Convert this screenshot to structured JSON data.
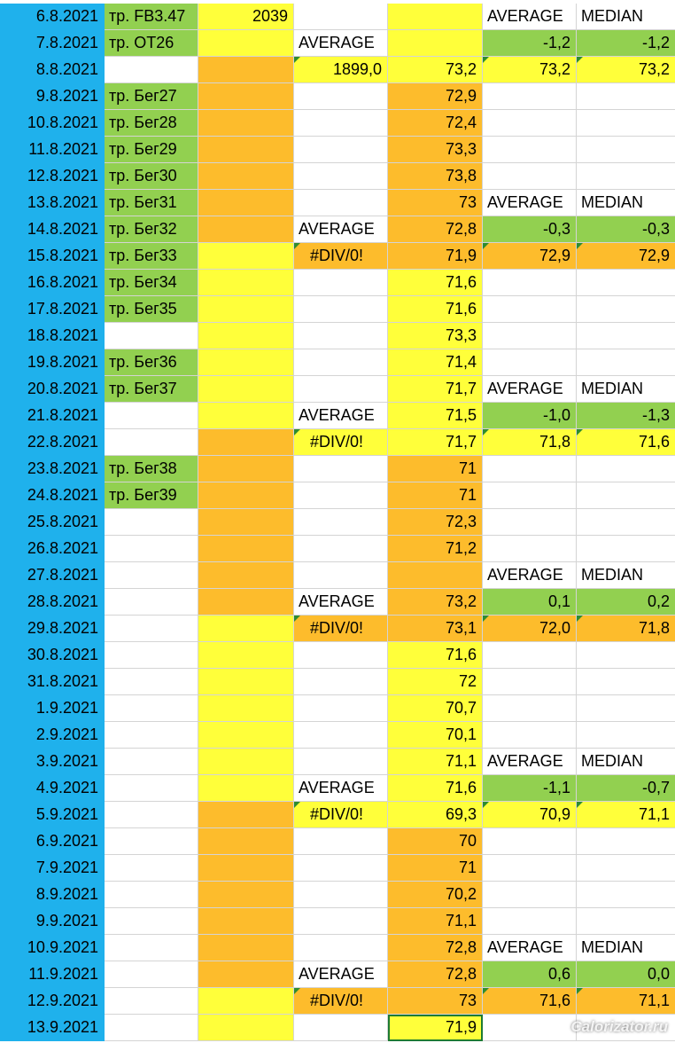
{
  "sheet": {
    "rows": [
      {
        "date": "6.8.2021",
        "training": "тр. FB3.47",
        "c2": "2039",
        "c3": "",
        "c4": "",
        "c5": "AVERAGE",
        "c6": "MEDIAN",
        "fill": [
          "blue",
          "green",
          "yellow",
          "white",
          "yellow",
          "white",
          "white"
        ],
        "tri": []
      },
      {
        "date": "7.8.2021",
        "training": "тр. OT26",
        "c2": "",
        "c3": "AVERAGE",
        "c4": "",
        "c5": "-1,2",
        "c6": "-1,2",
        "fill": [
          "blue",
          "green",
          "yellow",
          "white",
          "yellow",
          "green",
          "green"
        ],
        "tri": []
      },
      {
        "date": "8.8.2021",
        "training": "",
        "c2": "",
        "c3": "1899,0",
        "c4": "73,2",
        "c5": "73,2",
        "c6": "73,2",
        "fill": [
          "blue",
          "white",
          "orange",
          "yellow",
          "yellow",
          "yellow",
          "yellow"
        ],
        "tri": [
          3,
          5,
          6
        ]
      },
      {
        "date": "9.8.2021",
        "training": "тр. Бег27",
        "c2": "",
        "c3": "",
        "c4": "72,9",
        "c5": "",
        "c6": "",
        "fill": [
          "blue",
          "green",
          "orange",
          "white",
          "orange",
          "white",
          "white"
        ],
        "tri": []
      },
      {
        "date": "10.8.2021",
        "training": "тр. Бег28",
        "c2": "",
        "c3": "",
        "c4": "72,4",
        "c5": "",
        "c6": "",
        "fill": [
          "blue",
          "green",
          "orange",
          "white",
          "orange",
          "white",
          "white"
        ],
        "tri": []
      },
      {
        "date": "11.8.2021",
        "training": "тр. Бег29",
        "c2": "",
        "c3": "",
        "c4": "73,3",
        "c5": "",
        "c6": "",
        "fill": [
          "blue",
          "green",
          "orange",
          "white",
          "orange",
          "white",
          "white"
        ],
        "tri": []
      },
      {
        "date": "12.8.2021",
        "training": "тр. Бег30",
        "c2": "",
        "c3": "",
        "c4": "73,8",
        "c5": "",
        "c6": "",
        "fill": [
          "blue",
          "green",
          "orange",
          "white",
          "orange",
          "white",
          "white"
        ],
        "tri": []
      },
      {
        "date": "13.8.2021",
        "training": "тр. Бег31",
        "c2": "",
        "c3": "",
        "c4": "73",
        "c5": "AVERAGE",
        "c6": "MEDIAN",
        "fill": [
          "blue",
          "green",
          "orange",
          "white",
          "orange",
          "white",
          "white"
        ],
        "tri": []
      },
      {
        "date": "14.8.2021",
        "training": "тр. Бег32",
        "c2": "",
        "c3": "AVERAGE",
        "c4": "72,8",
        "c5": "-0,3",
        "c6": "-0,3",
        "fill": [
          "blue",
          "green",
          "orange",
          "white",
          "orange",
          "green",
          "green"
        ],
        "tri": []
      },
      {
        "date": "15.8.2021",
        "training": "тр. Бег33",
        "c2": "",
        "c3": "#DIV/0!",
        "c4": "71,9",
        "c5": "72,9",
        "c6": "72,9",
        "fill": [
          "blue",
          "green",
          "yellow",
          "orange",
          "orange",
          "orange",
          "orange"
        ],
        "tri": [
          3,
          5,
          6
        ]
      },
      {
        "date": "16.8.2021",
        "training": "тр. Бег34",
        "c2": "",
        "c3": "",
        "c4": "71,6",
        "c5": "",
        "c6": "",
        "fill": [
          "blue",
          "green",
          "yellow",
          "white",
          "yellow",
          "white",
          "white"
        ],
        "tri": []
      },
      {
        "date": "17.8.2021",
        "training": "тр. Бег35",
        "c2": "",
        "c3": "",
        "c4": "71,6",
        "c5": "",
        "c6": "",
        "fill": [
          "blue",
          "green",
          "yellow",
          "white",
          "yellow",
          "white",
          "white"
        ],
        "tri": []
      },
      {
        "date": "18.8.2021",
        "training": "",
        "c2": "",
        "c3": "",
        "c4": "73,3",
        "c5": "",
        "c6": "",
        "fill": [
          "blue",
          "white",
          "yellow",
          "white",
          "yellow",
          "white",
          "white"
        ],
        "tri": []
      },
      {
        "date": "19.8.2021",
        "training": "тр. Бег36",
        "c2": "",
        "c3": "",
        "c4": "71,4",
        "c5": "",
        "c6": "",
        "fill": [
          "blue",
          "green",
          "yellow",
          "white",
          "yellow",
          "white",
          "white"
        ],
        "tri": []
      },
      {
        "date": "20.8.2021",
        "training": "тр. Бег37",
        "c2": "",
        "c3": "",
        "c4": "71,7",
        "c5": "AVERAGE",
        "c6": "MEDIAN",
        "fill": [
          "blue",
          "green",
          "yellow",
          "white",
          "yellow",
          "white",
          "white"
        ],
        "tri": []
      },
      {
        "date": "21.8.2021",
        "training": "",
        "c2": "",
        "c3": "AVERAGE",
        "c4": "71,5",
        "c5": "-1,0",
        "c6": "-1,3",
        "fill": [
          "blue",
          "white",
          "yellow",
          "white",
          "yellow",
          "green",
          "green"
        ],
        "tri": []
      },
      {
        "date": "22.8.2021",
        "training": "",
        "c2": "",
        "c3": "#DIV/0!",
        "c4": "71,7",
        "c5": "71,8",
        "c6": "71,6",
        "fill": [
          "blue",
          "white",
          "orange",
          "yellow",
          "yellow",
          "yellow",
          "yellow"
        ],
        "tri": [
          3,
          5,
          6
        ]
      },
      {
        "date": "23.8.2021",
        "training": "тр. Бег38",
        "c2": "",
        "c3": "",
        "c4": "71",
        "c5": "",
        "c6": "",
        "fill": [
          "blue",
          "green",
          "orange",
          "white",
          "orange",
          "white",
          "white"
        ],
        "tri": []
      },
      {
        "date": "24.8.2021",
        "training": "тр. Бег39",
        "c2": "",
        "c3": "",
        "c4": "71",
        "c5": "",
        "c6": "",
        "fill": [
          "blue",
          "green",
          "orange",
          "white",
          "orange",
          "white",
          "white"
        ],
        "tri": []
      },
      {
        "date": "25.8.2021",
        "training": "",
        "c2": "",
        "c3": "",
        "c4": "72,3",
        "c5": "",
        "c6": "",
        "fill": [
          "blue",
          "white",
          "orange",
          "white",
          "orange",
          "white",
          "white"
        ],
        "tri": []
      },
      {
        "date": "26.8.2021",
        "training": "",
        "c2": "",
        "c3": "",
        "c4": "71,2",
        "c5": "",
        "c6": "",
        "fill": [
          "blue",
          "white",
          "orange",
          "white",
          "orange",
          "white",
          "white"
        ],
        "tri": []
      },
      {
        "date": "27.8.2021",
        "training": "",
        "c2": "",
        "c3": "",
        "c4": "",
        "c5": "AVERAGE",
        "c6": "MEDIAN",
        "fill": [
          "blue",
          "white",
          "orange",
          "white",
          "orange",
          "white",
          "white"
        ],
        "tri": []
      },
      {
        "date": "28.8.2021",
        "training": "",
        "c2": "",
        "c3": "AVERAGE",
        "c4": "73,2",
        "c5": "0,1",
        "c6": "0,2",
        "fill": [
          "blue",
          "white",
          "orange",
          "white",
          "orange",
          "green",
          "green"
        ],
        "tri": []
      },
      {
        "date": "29.8.2021",
        "training": "",
        "c2": "",
        "c3": "#DIV/0!",
        "c4": "73,1",
        "c5": "72,0",
        "c6": "71,8",
        "fill": [
          "blue",
          "white",
          "yellow",
          "orange",
          "orange",
          "orange",
          "orange"
        ],
        "tri": [
          3,
          5,
          6
        ]
      },
      {
        "date": "30.8.2021",
        "training": "",
        "c2": "",
        "c3": "",
        "c4": "71,6",
        "c5": "",
        "c6": "",
        "fill": [
          "blue",
          "white",
          "yellow",
          "white",
          "yellow",
          "white",
          "white"
        ],
        "tri": []
      },
      {
        "date": "31.8.2021",
        "training": "",
        "c2": "",
        "c3": "",
        "c4": "72",
        "c5": "",
        "c6": "",
        "fill": [
          "blue",
          "white",
          "yellow",
          "white",
          "yellow",
          "white",
          "white"
        ],
        "tri": []
      },
      {
        "date": "1.9.2021",
        "training": "",
        "c2": "",
        "c3": "",
        "c4": "70,7",
        "c5": "",
        "c6": "",
        "fill": [
          "blue",
          "white",
          "yellow",
          "white",
          "yellow",
          "white",
          "white"
        ],
        "tri": []
      },
      {
        "date": "2.9.2021",
        "training": "",
        "c2": "",
        "c3": "",
        "c4": "70,1",
        "c5": "",
        "c6": "",
        "fill": [
          "blue",
          "white",
          "yellow",
          "white",
          "yellow",
          "white",
          "white"
        ],
        "tri": []
      },
      {
        "date": "3.9.2021",
        "training": "",
        "c2": "",
        "c3": "",
        "c4": "71,1",
        "c5": "AVERAGE",
        "c6": "MEDIAN",
        "fill": [
          "blue",
          "white",
          "yellow",
          "white",
          "yellow",
          "white",
          "white"
        ],
        "tri": []
      },
      {
        "date": "4.9.2021",
        "training": "",
        "c2": "",
        "c3": "AVERAGE",
        "c4": "71,6",
        "c5": "-1,1",
        "c6": "-0,7",
        "fill": [
          "blue",
          "white",
          "yellow",
          "white",
          "yellow",
          "green",
          "green"
        ],
        "tri": []
      },
      {
        "date": "5.9.2021",
        "training": "",
        "c2": "",
        "c3": "#DIV/0!",
        "c4": "69,3",
        "c5": "70,9",
        "c6": "71,1",
        "fill": [
          "blue",
          "white",
          "orange",
          "yellow",
          "yellow",
          "yellow",
          "yellow"
        ],
        "tri": [
          3,
          5,
          6
        ]
      },
      {
        "date": "6.9.2021",
        "training": "",
        "c2": "",
        "c3": "",
        "c4": "70",
        "c5": "",
        "c6": "",
        "fill": [
          "blue",
          "white",
          "orange",
          "white",
          "orange",
          "white",
          "white"
        ],
        "tri": []
      },
      {
        "date": "7.9.2021",
        "training": "",
        "c2": "",
        "c3": "",
        "c4": "71",
        "c5": "",
        "c6": "",
        "fill": [
          "blue",
          "white",
          "orange",
          "white",
          "orange",
          "white",
          "white"
        ],
        "tri": []
      },
      {
        "date": "8.9.2021",
        "training": "",
        "c2": "",
        "c3": "",
        "c4": "70,2",
        "c5": "",
        "c6": "",
        "fill": [
          "blue",
          "white",
          "orange",
          "white",
          "orange",
          "white",
          "white"
        ],
        "tri": []
      },
      {
        "date": "9.9.2021",
        "training": "",
        "c2": "",
        "c3": "",
        "c4": "71,1",
        "c5": "",
        "c6": "",
        "fill": [
          "blue",
          "white",
          "orange",
          "white",
          "orange",
          "white",
          "white"
        ],
        "tri": []
      },
      {
        "date": "10.9.2021",
        "training": "",
        "c2": "",
        "c3": "",
        "c4": "72,8",
        "c5": "AVERAGE",
        "c6": "MEDIAN",
        "fill": [
          "blue",
          "white",
          "orange",
          "white",
          "orange",
          "white",
          "white"
        ],
        "tri": []
      },
      {
        "date": "11.9.2021",
        "training": "",
        "c2": "",
        "c3": "AVERAGE",
        "c4": "72,8",
        "c5": "0,6",
        "c6": "0,0",
        "fill": [
          "blue",
          "white",
          "orange",
          "white",
          "orange",
          "green",
          "green"
        ],
        "tri": []
      },
      {
        "date": "12.9.2021",
        "training": "",
        "c2": "",
        "c3": "#DIV/0!",
        "c4": "73",
        "c5": "71,6",
        "c6": "71,1",
        "fill": [
          "blue",
          "white",
          "yellow",
          "orange",
          "orange",
          "orange",
          "orange"
        ],
        "tri": [
          3,
          5,
          6
        ]
      },
      {
        "date": "13.9.2021",
        "training": "",
        "c2": "",
        "c3": "",
        "c4": "71,9",
        "c5": "",
        "c6": "",
        "fill": [
          "blue",
          "white",
          "yellow",
          "white",
          "yellow",
          "white",
          "white"
        ],
        "tri": [],
        "active_col": 4
      }
    ]
  },
  "watermark": "Calorizator.ru",
  "colors": {
    "blue": "#1fb1ec",
    "green": "#92d050",
    "yellow": "#ffff3a",
    "orange": "#fdbc2c",
    "white": "#ffffff"
  }
}
